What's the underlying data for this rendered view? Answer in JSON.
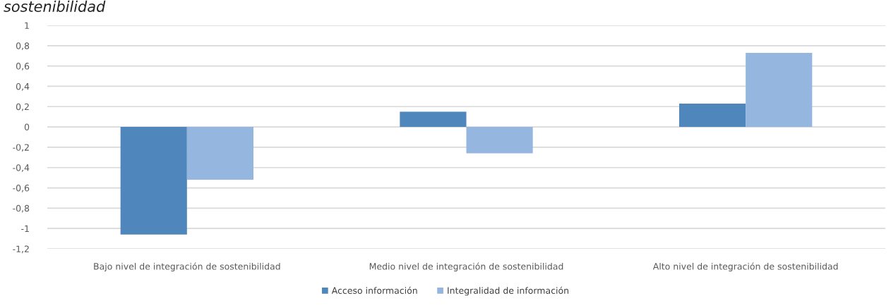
{
  "chart_data": {
    "type": "bar",
    "title": "sostenibilidad",
    "categories": [
      "Bajo nivel de integración de sostenibilidad",
      "Medio nivel de integración de sostenibilidad",
      "Alto nivel de integración de sostenibilidad"
    ],
    "series": [
      {
        "name": "Acceso información",
        "color": "#4f87bd",
        "values": [
          -1.06,
          0.15,
          0.23
        ]
      },
      {
        "name": "Integralidad de información",
        "color": "#95b6de",
        "values": [
          -0.52,
          -0.26,
          0.73
        ]
      }
    ],
    "ylim": [
      -1.2,
      1
    ],
    "yticks": [
      1,
      {
        "value": 0.8,
        "label": "0,8"
      },
      {
        "value": 0.6,
        "label": "0,6"
      },
      {
        "value": 0.4,
        "label": "0,4"
      },
      {
        "value": 0.2,
        "label": "0,2"
      },
      0,
      {
        "value": -0.2,
        "label": "-0,2"
      },
      {
        "value": -0.4,
        "label": "-0,4"
      },
      {
        "value": -0.6,
        "label": "-0,6"
      },
      {
        "value": -0.8,
        "label": "-0,8"
      },
      -1,
      {
        "value": -1.2,
        "label": "-1,2"
      }
    ],
    "grid": "y",
    "legend": "bottom"
  }
}
